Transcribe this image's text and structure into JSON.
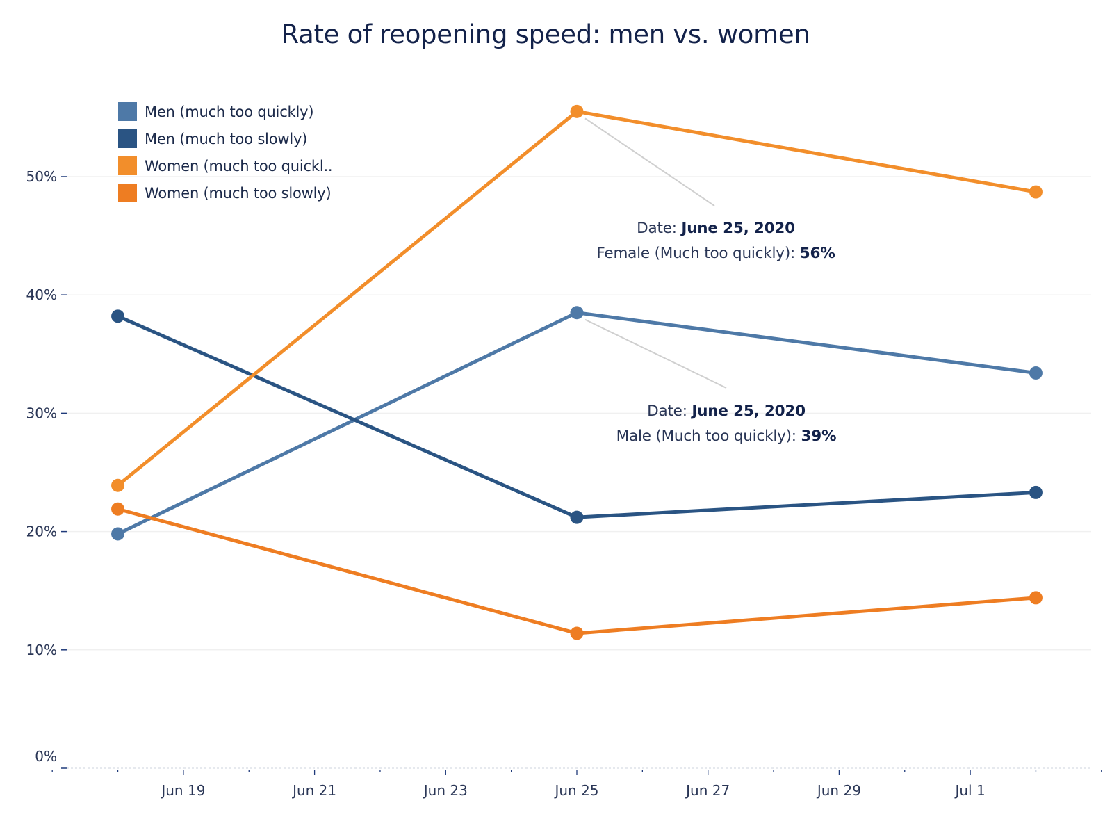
{
  "chart_data": {
    "type": "line",
    "title": "Rate of reopening speed: men vs. women",
    "xlabel": "",
    "ylabel": "",
    "x": [
      "2020-06-18",
      "2020-06-25",
      "2020-07-02"
    ],
    "x_axis": {
      "range": [
        "2020-06-17",
        "2020-07-03"
      ],
      "tick_labels": [
        "Jun 19",
        "Jun 21",
        "Jun 23",
        "Jun 25",
        "Jun 27",
        "Jun 29",
        "Jul 1"
      ],
      "tick_dates": [
        "2020-06-19",
        "2020-06-21",
        "2020-06-23",
        "2020-06-25",
        "2020-06-27",
        "2020-06-29",
        "2020-07-01"
      ]
    },
    "y_axis": {
      "ylim": [
        0,
        56
      ],
      "ticks": [
        0,
        10,
        20,
        30,
        40,
        50
      ],
      "tick_labels": [
        "0%",
        "10%",
        "20%",
        "30%",
        "40%",
        "50%"
      ],
      "grid": true
    },
    "legend": {
      "placement": "top-left"
    },
    "series": [
      {
        "name": "Men (much too quickly)",
        "color": "#4e79a7",
        "values": [
          19.8,
          38.5,
          33.4
        ]
      },
      {
        "name": "Men (much too slowly)",
        "color": "#2a5483",
        "values": [
          38.2,
          21.2,
          23.3
        ]
      },
      {
        "name": "Women (much too quickl..",
        "color": "#f28e2b",
        "values": [
          23.9,
          55.5,
          48.7
        ]
      },
      {
        "name": "Women (much too slowly)",
        "color": "#ee7d22",
        "values": [
          21.9,
          11.4,
          14.4
        ]
      }
    ],
    "annotations": [
      {
        "series_index": 2,
        "point_index": 1,
        "line1_label": "Date: ",
        "line1_value": "June 25, 2020",
        "line2_label": "Female (Much too quickly): ",
        "line2_value": "56%"
      },
      {
        "series_index": 0,
        "point_index": 1,
        "line1_label": "Date: ",
        "line1_value": "June 25, 2020",
        "line2_label": "Male (Much too quickly): ",
        "line2_value": "39%"
      }
    ]
  }
}
